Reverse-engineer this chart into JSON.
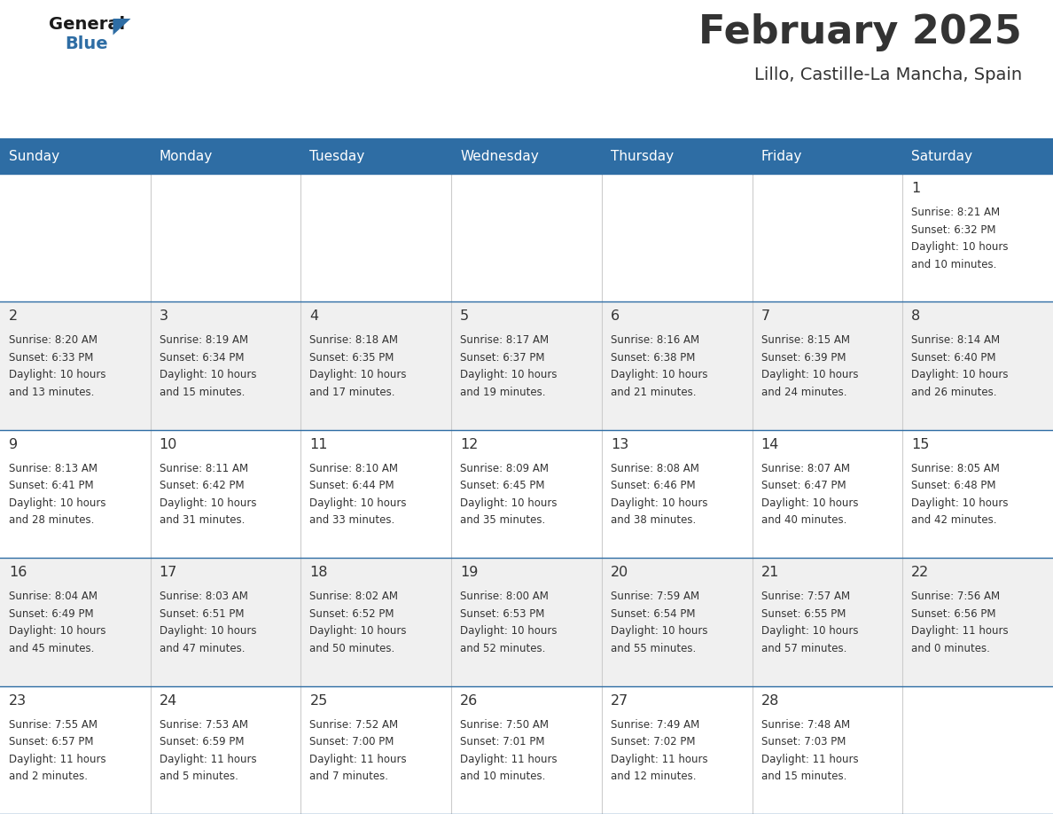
{
  "title": "February 2025",
  "subtitle": "Lillo, Castille-La Mancha, Spain",
  "header_bg": "#2e6da4",
  "header_text": "#ffffff",
  "cell_bg_light": "#f0f0f0",
  "cell_bg_white": "#ffffff",
  "day_headers": [
    "Sunday",
    "Monday",
    "Tuesday",
    "Wednesday",
    "Thursday",
    "Friday",
    "Saturday"
  ],
  "text_color": "#333333",
  "line_color": "#2e6da4",
  "logo_text_color": "#1a1a1a",
  "logo_blue_color": "#2e6da4",
  "days": [
    {
      "day": 1,
      "col": 6,
      "row": 0,
      "sunrise": "8:21 AM",
      "sunset": "6:32 PM",
      "daylight_line1": "Daylight: 10 hours",
      "daylight_line2": "and 10 minutes."
    },
    {
      "day": 2,
      "col": 0,
      "row": 1,
      "sunrise": "8:20 AM",
      "sunset": "6:33 PM",
      "daylight_line1": "Daylight: 10 hours",
      "daylight_line2": "and 13 minutes."
    },
    {
      "day": 3,
      "col": 1,
      "row": 1,
      "sunrise": "8:19 AM",
      "sunset": "6:34 PM",
      "daylight_line1": "Daylight: 10 hours",
      "daylight_line2": "and 15 minutes."
    },
    {
      "day": 4,
      "col": 2,
      "row": 1,
      "sunrise": "8:18 AM",
      "sunset": "6:35 PM",
      "daylight_line1": "Daylight: 10 hours",
      "daylight_line2": "and 17 minutes."
    },
    {
      "day": 5,
      "col": 3,
      "row": 1,
      "sunrise": "8:17 AM",
      "sunset": "6:37 PM",
      "daylight_line1": "Daylight: 10 hours",
      "daylight_line2": "and 19 minutes."
    },
    {
      "day": 6,
      "col": 4,
      "row": 1,
      "sunrise": "8:16 AM",
      "sunset": "6:38 PM",
      "daylight_line1": "Daylight: 10 hours",
      "daylight_line2": "and 21 minutes."
    },
    {
      "day": 7,
      "col": 5,
      "row": 1,
      "sunrise": "8:15 AM",
      "sunset": "6:39 PM",
      "daylight_line1": "Daylight: 10 hours",
      "daylight_line2": "and 24 minutes."
    },
    {
      "day": 8,
      "col": 6,
      "row": 1,
      "sunrise": "8:14 AM",
      "sunset": "6:40 PM",
      "daylight_line1": "Daylight: 10 hours",
      "daylight_line2": "and 26 minutes."
    },
    {
      "day": 9,
      "col": 0,
      "row": 2,
      "sunrise": "8:13 AM",
      "sunset": "6:41 PM",
      "daylight_line1": "Daylight: 10 hours",
      "daylight_line2": "and 28 minutes."
    },
    {
      "day": 10,
      "col": 1,
      "row": 2,
      "sunrise": "8:11 AM",
      "sunset": "6:42 PM",
      "daylight_line1": "Daylight: 10 hours",
      "daylight_line2": "and 31 minutes."
    },
    {
      "day": 11,
      "col": 2,
      "row": 2,
      "sunrise": "8:10 AM",
      "sunset": "6:44 PM",
      "daylight_line1": "Daylight: 10 hours",
      "daylight_line2": "and 33 minutes."
    },
    {
      "day": 12,
      "col": 3,
      "row": 2,
      "sunrise": "8:09 AM",
      "sunset": "6:45 PM",
      "daylight_line1": "Daylight: 10 hours",
      "daylight_line2": "and 35 minutes."
    },
    {
      "day": 13,
      "col": 4,
      "row": 2,
      "sunrise": "8:08 AM",
      "sunset": "6:46 PM",
      "daylight_line1": "Daylight: 10 hours",
      "daylight_line2": "and 38 minutes."
    },
    {
      "day": 14,
      "col": 5,
      "row": 2,
      "sunrise": "8:07 AM",
      "sunset": "6:47 PM",
      "daylight_line1": "Daylight: 10 hours",
      "daylight_line2": "and 40 minutes."
    },
    {
      "day": 15,
      "col": 6,
      "row": 2,
      "sunrise": "8:05 AM",
      "sunset": "6:48 PM",
      "daylight_line1": "Daylight: 10 hours",
      "daylight_line2": "and 42 minutes."
    },
    {
      "day": 16,
      "col": 0,
      "row": 3,
      "sunrise": "8:04 AM",
      "sunset": "6:49 PM",
      "daylight_line1": "Daylight: 10 hours",
      "daylight_line2": "and 45 minutes."
    },
    {
      "day": 17,
      "col": 1,
      "row": 3,
      "sunrise": "8:03 AM",
      "sunset": "6:51 PM",
      "daylight_line1": "Daylight: 10 hours",
      "daylight_line2": "and 47 minutes."
    },
    {
      "day": 18,
      "col": 2,
      "row": 3,
      "sunrise": "8:02 AM",
      "sunset": "6:52 PM",
      "daylight_line1": "Daylight: 10 hours",
      "daylight_line2": "and 50 minutes."
    },
    {
      "day": 19,
      "col": 3,
      "row": 3,
      "sunrise": "8:00 AM",
      "sunset": "6:53 PM",
      "daylight_line1": "Daylight: 10 hours",
      "daylight_line2": "and 52 minutes."
    },
    {
      "day": 20,
      "col": 4,
      "row": 3,
      "sunrise": "7:59 AM",
      "sunset": "6:54 PM",
      "daylight_line1": "Daylight: 10 hours",
      "daylight_line2": "and 55 minutes."
    },
    {
      "day": 21,
      "col": 5,
      "row": 3,
      "sunrise": "7:57 AM",
      "sunset": "6:55 PM",
      "daylight_line1": "Daylight: 10 hours",
      "daylight_line2": "and 57 minutes."
    },
    {
      "day": 22,
      "col": 6,
      "row": 3,
      "sunrise": "7:56 AM",
      "sunset": "6:56 PM",
      "daylight_line1": "Daylight: 11 hours",
      "daylight_line2": "and 0 minutes."
    },
    {
      "day": 23,
      "col": 0,
      "row": 4,
      "sunrise": "7:55 AM",
      "sunset": "6:57 PM",
      "daylight_line1": "Daylight: 11 hours",
      "daylight_line2": "and 2 minutes."
    },
    {
      "day": 24,
      "col": 1,
      "row": 4,
      "sunrise": "7:53 AM",
      "sunset": "6:59 PM",
      "daylight_line1": "Daylight: 11 hours",
      "daylight_line2": "and 5 minutes."
    },
    {
      "day": 25,
      "col": 2,
      "row": 4,
      "sunrise": "7:52 AM",
      "sunset": "7:00 PM",
      "daylight_line1": "Daylight: 11 hours",
      "daylight_line2": "and 7 minutes."
    },
    {
      "day": 26,
      "col": 3,
      "row": 4,
      "sunrise": "7:50 AM",
      "sunset": "7:01 PM",
      "daylight_line1": "Daylight: 11 hours",
      "daylight_line2": "and 10 minutes."
    },
    {
      "day": 27,
      "col": 4,
      "row": 4,
      "sunrise": "7:49 AM",
      "sunset": "7:02 PM",
      "daylight_line1": "Daylight: 11 hours",
      "daylight_line2": "and 12 minutes."
    },
    {
      "day": 28,
      "col": 5,
      "row": 4,
      "sunrise": "7:48 AM",
      "sunset": "7:03 PM",
      "daylight_line1": "Daylight: 11 hours",
      "daylight_line2": "and 15 minutes."
    }
  ]
}
